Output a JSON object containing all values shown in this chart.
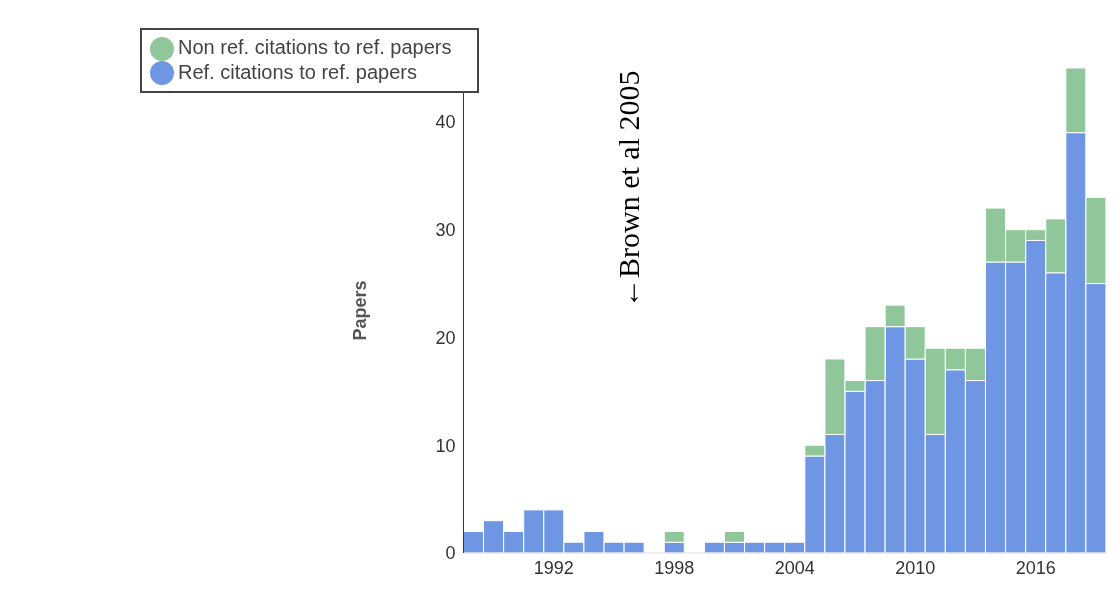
{
  "chart_data": {
    "type": "bar",
    "stacked": true,
    "ylabel": "Papers",
    "categories": [
      null,
      null,
      null,
      null,
      "1992",
      null,
      null,
      null,
      null,
      null,
      "1998",
      null,
      null,
      null,
      null,
      null,
      "2004",
      null,
      null,
      null,
      null,
      null,
      "2010",
      null,
      null,
      null,
      null,
      null,
      "2016",
      null,
      null,
      null
    ],
    "series": [
      {
        "name": "Ref. citations to ref. papers",
        "color": "#6f96e3",
        "values": [
          2,
          3,
          2,
          4,
          4,
          1,
          2,
          1,
          1,
          0,
          1,
          0,
          1,
          1,
          1,
          1,
          1,
          9,
          11,
          15,
          16,
          21,
          18,
          11,
          17,
          16,
          27,
          27,
          29,
          26,
          39,
          25
        ]
      },
      {
        "name": "Non ref. citations to ref. papers",
        "color": "#8fc79a",
        "values": [
          0,
          0,
          0,
          0,
          0,
          0,
          0,
          0,
          0,
          0,
          1,
          0,
          0,
          1,
          0,
          0,
          0,
          1,
          7,
          1,
          5,
          2,
          3,
          8,
          2,
          3,
          5,
          3,
          1,
          5,
          6,
          8
        ]
      }
    ],
    "ylim": [
      0,
      45
    ],
    "yticks": [
      0,
      10,
      20,
      30,
      40
    ],
    "grid": false,
    "legend": "top left",
    "annotations": [
      "←Brown et al 2005"
    ]
  }
}
